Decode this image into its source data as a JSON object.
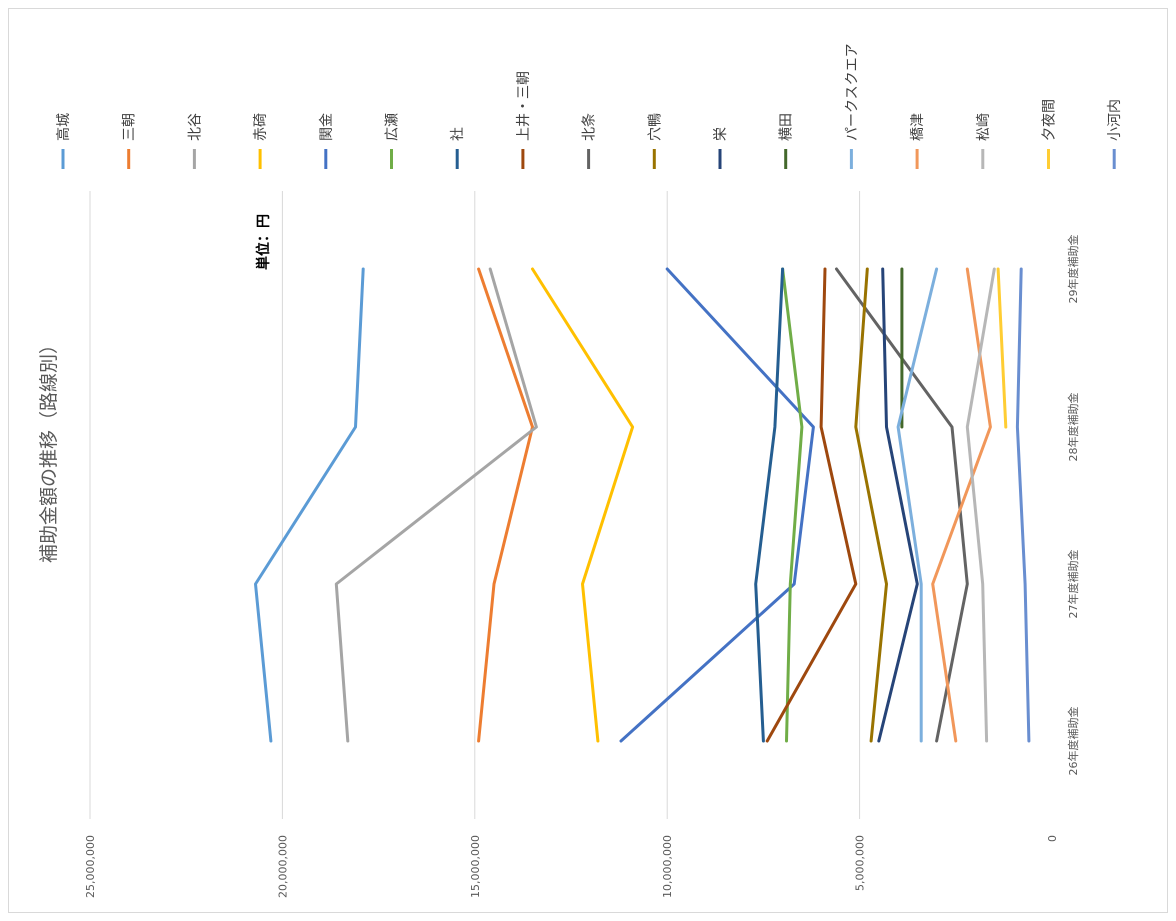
{
  "chart_data": {
    "type": "line",
    "orientation": "rotated-90-ccw",
    "title": "補助金額の推移（路線別）",
    "unit_label": "単位：円",
    "categories": [
      "26年度補助金",
      "27年度補助金",
      "28年度補助金",
      "29年度補助金"
    ],
    "value_ticks": [
      "0",
      "5,000,000",
      "10,000,000",
      "15,000,000",
      "20,000,000",
      "25,000,000"
    ],
    "ylim": [
      0,
      25000000
    ],
    "grid": true,
    "legend_position": "top",
    "series": [
      {
        "name": "高城",
        "color": "#5B9BD5",
        "values": [
          20300000,
          20700000,
          18100000,
          17900000
        ]
      },
      {
        "name": "三朝",
        "color": "#ED7D31",
        "values": [
          14900000,
          14500000,
          13500000,
          14900000
        ]
      },
      {
        "name": "北谷",
        "color": "#A5A5A5",
        "values": [
          18300000,
          18600000,
          13400000,
          14600000
        ]
      },
      {
        "name": "赤碕",
        "color": "#FFC000",
        "values": [
          11800000,
          12200000,
          10900000,
          13500000
        ]
      },
      {
        "name": "関金",
        "color": "#4472C4",
        "values": [
          11200000,
          6700000,
          6200000,
          10000000
        ]
      },
      {
        "name": "広瀬",
        "color": "#70AD47",
        "values": [
          6900000,
          6800000,
          6500000,
          7000000
        ]
      },
      {
        "name": "社",
        "color": "#255E91",
        "values": [
          7500000,
          7700000,
          7200000,
          7000000
        ]
      },
      {
        "name": "上井・三朝",
        "color": "#9E480E",
        "values": [
          7400000,
          5100000,
          6000000,
          5900000
        ]
      },
      {
        "name": "北条",
        "color": "#636363",
        "values": [
          3000000,
          2200000,
          2600000,
          5600000
        ]
      },
      {
        "name": "穴鴨",
        "color": "#997300",
        "values": [
          4700000,
          4300000,
          5100000,
          4800000
        ]
      },
      {
        "name": "栄",
        "color": "#264478",
        "values": [
          4500000,
          3500000,
          4300000,
          4400000
        ]
      },
      {
        "name": "横田",
        "color": "#43682B",
        "values": [
          null,
          null,
          3900000,
          3900000
        ]
      },
      {
        "name": "パークスクエア",
        "color": "#7CAFDD",
        "values": [
          3400000,
          3400000,
          4000000,
          3000000
        ]
      },
      {
        "name": "橋津",
        "color": "#F1975A",
        "values": [
          2500000,
          3100000,
          1600000,
          2200000
        ]
      },
      {
        "name": "松崎",
        "color": "#B7B7B7",
        "values": [
          1700000,
          1800000,
          2200000,
          1500000
        ]
      },
      {
        "name": "夕夜間",
        "color": "#FFCD33",
        "values": [
          null,
          null,
          1200000,
          1400000
        ]
      },
      {
        "name": "小河内",
        "color": "#698ED0",
        "values": [
          600000,
          700000,
          900000,
          800000
        ]
      }
    ]
  }
}
